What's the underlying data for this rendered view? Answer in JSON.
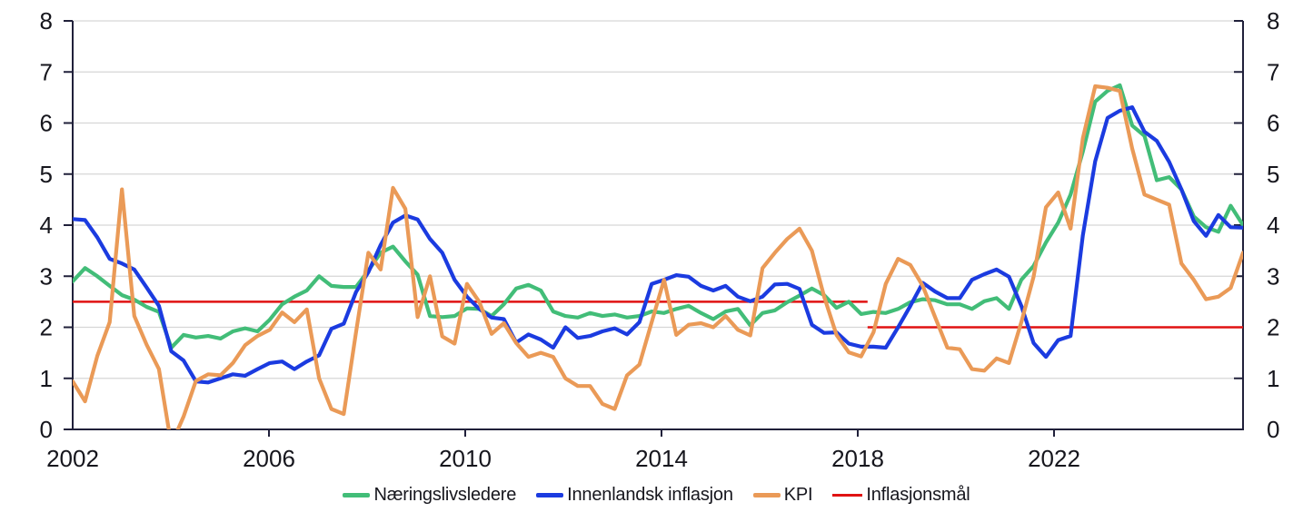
{
  "chart_data": {
    "type": "line",
    "title": "",
    "x_axis": {
      "tick_labels": [
        "2002",
        "2006",
        "2010",
        "2014",
        "2018",
        "2022"
      ],
      "tick_years": [
        2002,
        2006,
        2010,
        2014,
        2018,
        2022
      ],
      "start_year": 2002,
      "step_years": 0.25,
      "end_year": 2025.75
    },
    "y_axis": {
      "min": 0,
      "max": 8,
      "ticks": [
        0,
        1,
        2,
        3,
        4,
        5,
        6,
        7,
        8
      ],
      "dual_sided": true
    },
    "grid": "horizontal",
    "legend_position": "bottom-center",
    "colors": {
      "grid": "#d6d6d6",
      "axis": "#20203a",
      "text": "#16161d",
      "background": "#ffffff"
    },
    "series": [
      {
        "id": "naeringslivsledere",
        "name": "Næringslivsledere",
        "color": "#42bd78",
        "values": [
          2.9,
          3.16,
          3.0,
          2.81,
          2.63,
          2.54,
          2.4,
          2.3,
          1.6,
          1.85,
          1.8,
          1.83,
          1.78,
          1.92,
          1.98,
          1.92,
          2.15,
          2.45,
          2.6,
          2.72,
          3.0,
          2.81,
          2.79,
          2.79,
          3.11,
          3.46,
          3.58,
          3.29,
          3.03,
          2.22,
          2.2,
          2.22,
          2.37,
          2.36,
          2.22,
          2.45,
          2.76,
          2.83,
          2.72,
          2.31,
          2.22,
          2.19,
          2.28,
          2.22,
          2.25,
          2.19,
          2.22,
          2.31,
          2.28,
          2.36,
          2.42,
          2.28,
          2.16,
          2.31,
          2.36,
          2.04,
          2.28,
          2.33,
          2.49,
          2.62,
          2.76,
          2.63,
          2.38,
          2.5,
          2.26,
          2.3,
          2.28,
          2.36,
          2.49,
          2.55,
          2.53,
          2.45,
          2.45,
          2.36,
          2.51,
          2.57,
          2.36,
          2.93,
          3.2,
          3.66,
          4.05,
          4.6,
          5.44,
          6.42,
          6.63,
          6.74,
          5.95,
          5.75,
          4.88,
          4.94,
          4.7,
          4.17,
          3.96,
          3.87,
          4.38,
          4.0
        ]
      },
      {
        "id": "innenlandsk-inflasjon",
        "name": "Innenlandsk inflasjon",
        "color": "#1b3be0",
        "values": [
          4.12,
          4.1,
          3.76,
          3.34,
          3.25,
          3.13,
          2.78,
          2.42,
          1.53,
          1.35,
          0.94,
          0.92,
          1.0,
          1.08,
          1.05,
          1.18,
          1.3,
          1.33,
          1.18,
          1.33,
          1.45,
          1.97,
          2.07,
          2.69,
          3.08,
          3.61,
          4.05,
          4.19,
          4.11,
          3.73,
          3.46,
          2.93,
          2.6,
          2.36,
          2.19,
          2.16,
          1.7,
          1.86,
          1.76,
          1.6,
          2.0,
          1.79,
          1.83,
          1.92,
          1.98,
          1.86,
          2.1,
          2.85,
          2.93,
          3.02,
          2.99,
          2.81,
          2.72,
          2.81,
          2.6,
          2.51,
          2.6,
          2.84,
          2.85,
          2.75,
          2.05,
          1.89,
          1.9,
          1.68,
          1.62,
          1.62,
          1.6,
          2.0,
          2.42,
          2.87,
          2.7,
          2.57,
          2.57,
          2.93,
          3.04,
          3.13,
          2.99,
          2.42,
          1.69,
          1.42,
          1.75,
          1.83,
          3.8,
          5.25,
          6.1,
          6.24,
          6.31,
          5.83,
          5.65,
          5.24,
          4.7,
          4.08,
          3.79,
          4.2,
          3.96,
          3.95
        ]
      },
      {
        "id": "kpi",
        "name": "KPI",
        "color": "#ea9a57",
        "values": [
          0.94,
          0.55,
          1.44,
          2.1,
          4.7,
          2.22,
          1.66,
          1.18,
          -0.3,
          0.25,
          0.95,
          1.08,
          1.06,
          1.3,
          1.65,
          1.83,
          1.95,
          2.29,
          2.1,
          2.35,
          1.0,
          0.4,
          0.3,
          1.9,
          3.46,
          3.13,
          4.73,
          4.32,
          2.2,
          3.0,
          1.82,
          1.68,
          2.85,
          2.5,
          1.87,
          2.08,
          1.69,
          1.42,
          1.5,
          1.42,
          1.0,
          0.85,
          0.85,
          0.5,
          0.4,
          1.06,
          1.27,
          2.1,
          2.93,
          1.85,
          2.05,
          2.08,
          2.0,
          2.22,
          1.95,
          1.84,
          3.16,
          3.46,
          3.73,
          3.93,
          3.5,
          2.6,
          1.85,
          1.51,
          1.43,
          1.9,
          2.85,
          3.34,
          3.22,
          2.81,
          2.2,
          1.6,
          1.57,
          1.18,
          1.15,
          1.39,
          1.3,
          2.1,
          2.99,
          4.35,
          4.64,
          3.93,
          5.7,
          6.72,
          6.69,
          6.63,
          5.5,
          4.6,
          4.5,
          4.4,
          3.25,
          2.93,
          2.55,
          2.6,
          2.77,
          3.46
        ]
      }
    ],
    "target_line": {
      "id": "inflasjonsmaal",
      "name": "Inflasjonsmål",
      "color": "#e01212",
      "segments": [
        {
          "from_year": 2002.0,
          "to_year": 2018.2,
          "value": 2.5
        },
        {
          "from_year": 2018.2,
          "to_year": 2025.95,
          "value": 2.0
        }
      ]
    },
    "legend": [
      {
        "id": "naeringslivsledere",
        "label": "Næringslivsledere",
        "color": "#42bd78",
        "style": "thick"
      },
      {
        "id": "innenlandsk-inflasjon",
        "label": "Innenlandsk inflasjon",
        "color": "#1b3be0",
        "style": "thick"
      },
      {
        "id": "kpi",
        "label": "KPI",
        "color": "#ea9a57",
        "style": "thick"
      },
      {
        "id": "inflasjonsmaal",
        "label": "Inflasjonsmål",
        "color": "#e01212",
        "style": "thin"
      }
    ]
  }
}
